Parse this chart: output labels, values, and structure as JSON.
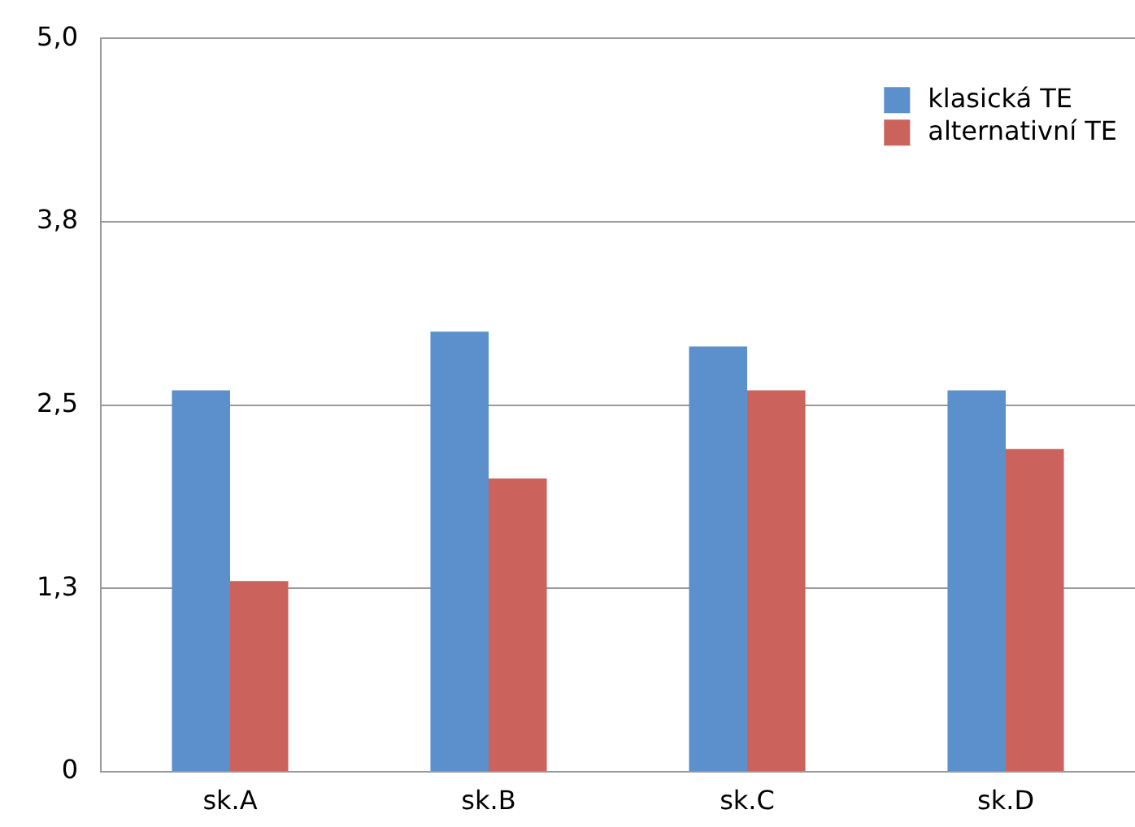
{
  "chart_data": {
    "type": "bar",
    "categories": [
      "sk.A",
      "sk.B",
      "sk.C",
      "sk.D"
    ],
    "series": [
      {
        "name": "klasická TE",
        "color": "#5b90cc",
        "values": [
          2.6,
          3.0,
          2.9,
          2.6
        ]
      },
      {
        "name": "alternativní TE",
        "color": "#cc625c",
        "values": [
          1.3,
          2.0,
          2.6,
          2.2
        ]
      }
    ],
    "ylim": [
      0,
      5
    ],
    "yticks": [
      {
        "value": 0,
        "label": "0"
      },
      {
        "value": 1.25,
        "label": "1,3"
      },
      {
        "value": 2.5,
        "label": "2,5"
      },
      {
        "value": 3.75,
        "label": "3,8"
      },
      {
        "value": 5,
        "label": "5,0"
      }
    ],
    "grid": "y",
    "legend": "top right"
  }
}
